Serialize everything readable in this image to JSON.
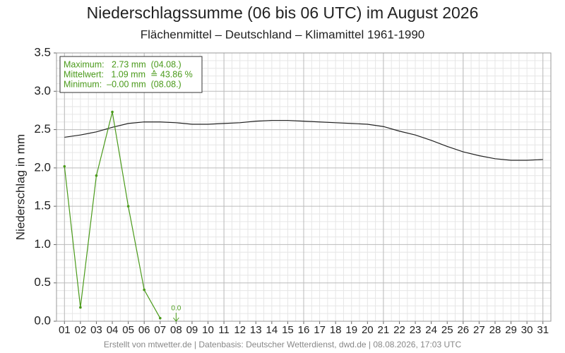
{
  "chart_data": {
    "type": "line",
    "title": "Niederschlagssumme (06 bis 06 UTC) im August 2026",
    "subtitle": "Flächenmittel – Deutschland – Klimamittel 1961-1990",
    "ylabel": "Niederschlag in mm",
    "categories": [
      "01",
      "02",
      "03",
      "04",
      "05",
      "06",
      "07",
      "08",
      "09",
      "10",
      "11",
      "12",
      "13",
      "14",
      "15",
      "16",
      "17",
      "18",
      "19",
      "20",
      "21",
      "22",
      "23",
      "24",
      "25",
      "26",
      "27",
      "28",
      "29",
      "30",
      "31"
    ],
    "series": [
      {
        "name": "Niederschlag",
        "color": "#4a9a1a",
        "markers": true,
        "values": [
          2.02,
          0.18,
          1.9,
          2.73,
          1.5,
          0.41,
          0.04,
          null,
          null,
          null,
          null,
          null,
          null,
          null,
          null,
          null,
          null,
          null,
          null,
          null,
          null,
          null,
          null,
          null,
          null,
          null,
          null,
          null,
          null,
          null,
          null
        ]
      },
      {
        "name": "Klimamittel",
        "color": "#222222",
        "markers": false,
        "values": [
          2.4,
          2.43,
          2.47,
          2.53,
          2.58,
          2.6,
          2.6,
          2.59,
          2.57,
          2.57,
          2.58,
          2.59,
          2.61,
          2.62,
          2.62,
          2.61,
          2.6,
          2.59,
          2.58,
          2.57,
          2.54,
          2.48,
          2.43,
          2.36,
          2.28,
          2.21,
          2.16,
          2.12,
          2.1,
          2.1,
          2.11
        ]
      }
    ],
    "current_marker": {
      "category": "08",
      "value": 0,
      "label": "0.0",
      "color": "#4a9a1a"
    },
    "ylim": [
      0,
      3.5
    ],
    "yticks": [
      {
        "value": 0,
        "label": "0.0"
      },
      {
        "value": 0.5,
        "label": "0.5"
      },
      {
        "value": 1,
        "label": "1.0"
      },
      {
        "value": 1.5,
        "label": "1.5"
      },
      {
        "value": 2,
        "label": "2.0"
      },
      {
        "value": 2.5,
        "label": "2.5"
      },
      {
        "value": 3,
        "label": "3.0"
      },
      {
        "value": 3.5,
        "label": "3.5"
      }
    ],
    "grid": true,
    "info_box": [
      "Maximum:   2.73 mm  (04.08.)",
      "Mittelwert:   1.09 mm  ≙ 43.86 %",
      "Minimum:  –0.00 mm  (08.08.)"
    ],
    "footer": "Erstellt von mtwetter.de | Datenbasis: Deutscher Wetterdienst, dwd.de | 08.08.2026, 17:03 UTC"
  }
}
